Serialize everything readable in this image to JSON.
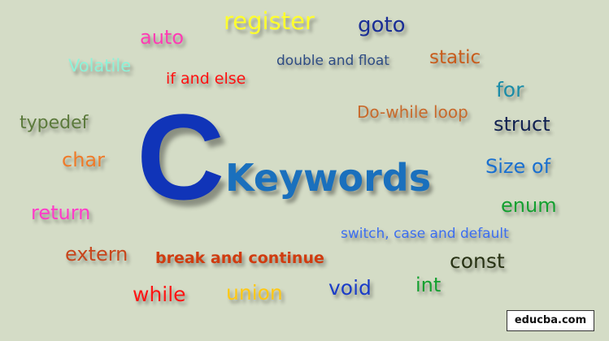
{
  "title": {
    "letter": "C",
    "word": "Keywords"
  },
  "watermark": "educba.com",
  "keywords": [
    {
      "text": "register",
      "color": "#ffff2e"
    },
    {
      "text": "goto",
      "color": "#1a2e96"
    },
    {
      "text": "auto",
      "color": "#ff3cb4"
    },
    {
      "text": "Volatile",
      "color": "#8ef2d8"
    },
    {
      "text": "double and float",
      "color": "#2e4c84"
    },
    {
      "text": "static",
      "color": "#c85c1c"
    },
    {
      "text": "if and else",
      "color": "#ff1010"
    },
    {
      "text": "for",
      "color": "#1a8ca8"
    },
    {
      "text": "typedef",
      "color": "#5c7a3c"
    },
    {
      "text": "Do-while loop",
      "color": "#c86a2c"
    },
    {
      "text": "struct",
      "color": "#102050"
    },
    {
      "text": "char",
      "color": "#f07a28"
    },
    {
      "text": "Size of",
      "color": "#1a70d0"
    },
    {
      "text": "enum",
      "color": "#14a030"
    },
    {
      "text": "return",
      "color": "#ff3cc8"
    },
    {
      "text": "switch, case and default",
      "color": "#3c6ef0"
    },
    {
      "text": "extern",
      "color": "#c8461c"
    },
    {
      "text": "break and continue",
      "color": "#d03c10"
    },
    {
      "text": "const",
      "color": "#283214"
    },
    {
      "text": "int",
      "color": "#14a030"
    },
    {
      "text": "void",
      "color": "#1a3cc8"
    },
    {
      "text": "while",
      "color": "#ff1414"
    },
    {
      "text": "union",
      "color": "#ffc814"
    }
  ]
}
